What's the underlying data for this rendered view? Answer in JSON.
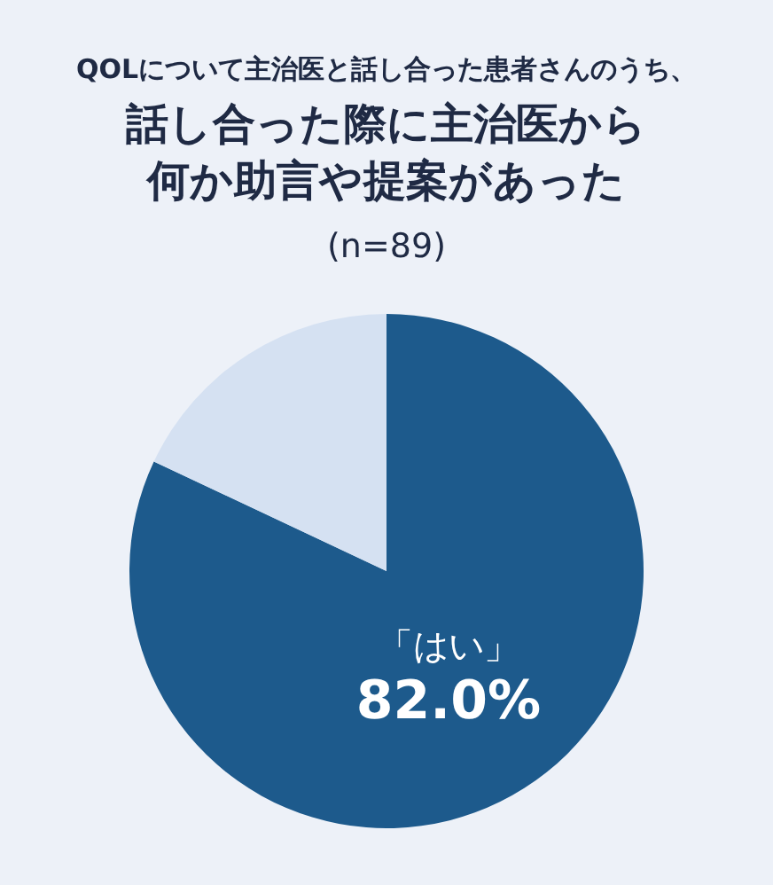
{
  "chart_data": {
    "type": "pie",
    "title": "QOLについて主治医と話し合った患者さんのうち、",
    "subtitle": "話し合った際に主治医から何か助言や提案があった",
    "annotations": [
      "(n=89)"
    ],
    "categories": [
      "「はい」",
      null
    ],
    "values": [
      82.0,
      18.0
    ],
    "colors": [
      "#1d5a8c",
      "#d5e1f2"
    ],
    "value_labels": [
      "82.0%",
      null
    ]
  }
}
